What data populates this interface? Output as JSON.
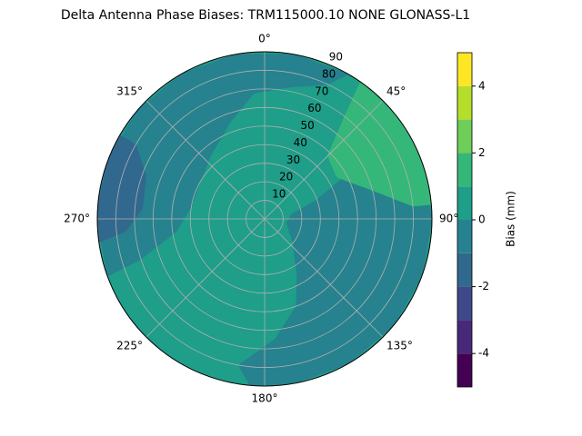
{
  "chart_data": {
    "type": "polar_contour",
    "title": "Delta Antenna Phase Biases: TRM115000.10    NONE GLONASS-L1",
    "rlim": [
      0,
      90
    ],
    "rticks": [
      10,
      20,
      30,
      40,
      50,
      60,
      70,
      80,
      90
    ],
    "thetaticks": [
      {
        "value": 0,
        "label": "0°"
      },
      {
        "value": 45,
        "label": "45°"
      },
      {
        "value": 90,
        "label": "90°"
      },
      {
        "value": 135,
        "label": "135°"
      },
      {
        "value": 180,
        "label": "180°"
      },
      {
        "value": 225,
        "label": "225°"
      },
      {
        "value": 270,
        "label": "270°"
      },
      {
        "value": 315,
        "label": "315°"
      }
    ],
    "grid": true,
    "background_level": 0,
    "regions": [
      {
        "level": -1,
        "points": [
          [
            250,
            90
          ],
          [
            270,
            90
          ],
          [
            290,
            90
          ],
          [
            310,
            90
          ],
          [
            330,
            90
          ],
          [
            350,
            90
          ],
          [
            10,
            90
          ],
          [
            30,
            90
          ],
          [
            25,
            80
          ],
          [
            10,
            72
          ],
          [
            355,
            68
          ],
          [
            340,
            55
          ],
          [
            320,
            45
          ],
          [
            300,
            40
          ],
          [
            280,
            40
          ],
          [
            262,
            48
          ],
          [
            252,
            70
          ]
        ]
      },
      {
        "level": -1,
        "points": [
          [
            55,
            90
          ],
          [
            70,
            90
          ],
          [
            90,
            90
          ],
          [
            110,
            90
          ],
          [
            130,
            90
          ],
          [
            150,
            90
          ],
          [
            170,
            90
          ],
          [
            185,
            90
          ],
          [
            190,
            80
          ],
          [
            175,
            65
          ],
          [
            160,
            50
          ],
          [
            150,
            35
          ],
          [
            130,
            20
          ],
          [
            100,
            12
          ],
          [
            80,
            15
          ],
          [
            70,
            30
          ],
          [
            60,
            60
          ]
        ]
      },
      {
        "level": -2,
        "points": [
          [
            262,
            90
          ],
          [
            275,
            90
          ],
          [
            290,
            90
          ],
          [
            300,
            90
          ],
          [
            300,
            80
          ],
          [
            290,
            68
          ],
          [
            275,
            66
          ],
          [
            265,
            75
          ]
        ]
      },
      {
        "level": 1,
        "points": [
          [
            35,
            90
          ],
          [
            45,
            90
          ],
          [
            55,
            90
          ],
          [
            65,
            90
          ],
          [
            75,
            90
          ],
          [
            85,
            90
          ],
          [
            85,
            80
          ],
          [
            75,
            60
          ],
          [
            60,
            45
          ],
          [
            45,
            48
          ],
          [
            38,
            70
          ]
        ]
      }
    ],
    "colorbar": {
      "label": "Bias (mm)",
      "levels": [
        -5,
        -4,
        -3,
        -2,
        -1,
        0,
        1,
        2,
        3,
        4,
        5
      ],
      "colors": [
        "#440154",
        "#482878",
        "#3e4989",
        "#31688e",
        "#26828e",
        "#1f9e89",
        "#35b779",
        "#6ece58",
        "#b5de2b",
        "#fde725"
      ],
      "ticks": [
        -4,
        -2,
        0,
        2,
        4
      ]
    }
  }
}
